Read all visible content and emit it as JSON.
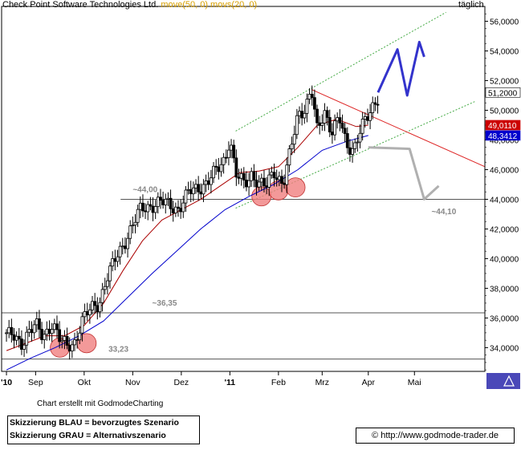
{
  "header": {
    "instrument": "Check Point Software Technologies Ltd.",
    "indicators": "move(50, 0) movs(20, 0)",
    "frequency": "täglich"
  },
  "footer": {
    "credit": "Chart erstellt mit GodmodeCharting",
    "legend_blue": "Skizzierung BLAU = bevorzugtes Szenario",
    "legend_grey": "Skizzierung GRAU = Alternativszenario",
    "copyright_symbol": "©",
    "url": "http://www.godmode-trader.de"
  },
  "colors": {
    "candle": "#000000",
    "ma_short": "#aa0000",
    "ma_long": "#0000cc",
    "channel": "#44aa44",
    "resistance": "#dd2222",
    "level_line": "#555555",
    "scenario_blue": "#3333cc",
    "scenario_grey": "#b0b0b0",
    "circle_fill": "#f08080",
    "price_label_bg": "#cc0000",
    "ma_label_bg": "#0000cc"
  },
  "chart_data": {
    "type": "candlestick",
    "y_axis": {
      "side": "right",
      "ylim": [
        32.4,
        57.0
      ],
      "ticks": [
        34,
        36,
        38,
        40,
        42,
        44,
        46,
        48,
        50,
        52,
        54,
        56
      ],
      "tick_labels": [
        "34,0000",
        "36,0000",
        "38,0000",
        "40,0000",
        "42,0000",
        "44,0000",
        "46,0000",
        "48,0000",
        "50,0000",
        "52,0000",
        "54,0000",
        "56,0000"
      ]
    },
    "x_axis": {
      "labels": [
        {
          "label": "'10",
          "pos": 0.0
        },
        {
          "label": "Sep",
          "pos": 0.6
        },
        {
          "label": "Okt",
          "pos": 1.6
        },
        {
          "label": "Nov",
          "pos": 2.6
        },
        {
          "label": "Dez",
          "pos": 3.6
        },
        {
          "label": "'11",
          "pos": 4.6
        },
        {
          "label": "Feb",
          "pos": 5.6
        },
        {
          "label": "Mrz",
          "pos": 6.5
        },
        {
          "label": "Apr",
          "pos": 7.45
        },
        {
          "label": "Mai",
          "pos": 8.4
        }
      ],
      "range": [
        -0.1,
        9.85
      ]
    },
    "price_series": [
      [
        0.0,
        35.0
      ],
      [
        0.3,
        34.2
      ],
      [
        0.45,
        35.2
      ],
      [
        0.6,
        35.5
      ],
      [
        0.75,
        34.6
      ],
      [
        0.95,
        35.8
      ],
      [
        1.1,
        34.5
      ],
      [
        1.25,
        34.0
      ],
      [
        1.4,
        34.4
      ],
      [
        1.55,
        35.8
      ],
      [
        1.75,
        36.6
      ],
      [
        1.9,
        37.0
      ],
      [
        2.05,
        38.6
      ],
      [
        2.2,
        39.6
      ],
      [
        2.35,
        40.6
      ],
      [
        2.55,
        42.0
      ],
      [
        2.75,
        43.2
      ],
      [
        2.95,
        43.6
      ],
      [
        3.15,
        43.8
      ],
      [
        3.35,
        43.6
      ],
      [
        3.55,
        43.4
      ],
      [
        3.75,
        44.4
      ],
      [
        3.95,
        44.8
      ],
      [
        4.15,
        45.2
      ],
      [
        4.35,
        46.0
      ],
      [
        4.5,
        46.8
      ],
      [
        4.6,
        48.2
      ],
      [
        4.72,
        45.6
      ],
      [
        4.9,
        45.0
      ],
      [
        5.05,
        45.8
      ],
      [
        5.2,
        45.0
      ],
      [
        5.35,
        44.8
      ],
      [
        5.5,
        46.0
      ],
      [
        5.7,
        45.0
      ],
      [
        5.85,
        47.2
      ],
      [
        6.0,
        49.8
      ],
      [
        6.15,
        50.2
      ],
      [
        6.28,
        51.3
      ],
      [
        6.4,
        48.5
      ],
      [
        6.55,
        50.0
      ],
      [
        6.7,
        48.6
      ],
      [
        6.85,
        49.4
      ],
      [
        7.0,
        47.6
      ],
      [
        7.15,
        47.5
      ],
      [
        7.3,
        48.8
      ],
      [
        7.42,
        49.3
      ],
      [
        7.55,
        50.3
      ],
      [
        7.65,
        51.0
      ]
    ],
    "ma_short": [
      [
        0.0,
        33.8
      ],
      [
        0.4,
        34.3
      ],
      [
        0.8,
        34.8
      ],
      [
        1.2,
        34.8
      ],
      [
        1.6,
        35.5
      ],
      [
        2.0,
        37.0
      ],
      [
        2.4,
        39.2
      ],
      [
        2.8,
        41.2
      ],
      [
        3.2,
        42.6
      ],
      [
        3.6,
        43.3
      ],
      [
        4.0,
        44.0
      ],
      [
        4.4,
        44.9
      ],
      [
        4.8,
        45.8
      ],
      [
        5.2,
        45.9
      ],
      [
        5.6,
        46.2
      ],
      [
        6.0,
        47.5
      ],
      [
        6.4,
        49.0
      ],
      [
        6.8,
        49.4
      ],
      [
        7.2,
        48.9
      ],
      [
        7.45,
        49.0
      ]
    ],
    "ma_long": [
      [
        0.0,
        32.5
      ],
      [
        0.5,
        33.3
      ],
      [
        1.0,
        34.0
      ],
      [
        1.5,
        34.8
      ],
      [
        2.0,
        35.8
      ],
      [
        2.5,
        37.4
      ],
      [
        3.0,
        39.0
      ],
      [
        3.5,
        40.5
      ],
      [
        4.0,
        42.0
      ],
      [
        4.5,
        43.3
      ],
      [
        5.0,
        44.2
      ],
      [
        5.5,
        45.0
      ],
      [
        6.0,
        46.0
      ],
      [
        6.5,
        47.3
      ],
      [
        7.0,
        47.9
      ],
      [
        7.45,
        48.3
      ]
    ],
    "channel_upper": [
      [
        4.72,
        48.6
      ],
      [
        9.05,
        56.6
      ]
    ],
    "channel_lower": [
      [
        4.72,
        43.4
      ],
      [
        9.65,
        50.6
      ]
    ],
    "resistance_line": [
      [
        6.28,
        51.4
      ],
      [
        9.85,
        46.2
      ]
    ],
    "levels": [
      {
        "value": 44.0,
        "label": "~44,00",
        "x_from": 2.35,
        "label_x": 2.6
      },
      {
        "value": 36.35,
        "label": "~36,35",
        "x_from": -0.1,
        "label_x": 3.0
      },
      {
        "value": 33.23,
        "label": "33,23",
        "x_from": -0.1,
        "label_x": 2.1
      }
    ],
    "annotation_44_10": {
      "label": "~44,10",
      "x": 8.75,
      "y": 43.0
    },
    "circles": [
      [
        1.1,
        34.0
      ],
      [
        1.65,
        34.3
      ],
      [
        5.25,
        44.2
      ],
      [
        5.6,
        44.6
      ],
      [
        5.95,
        44.8
      ]
    ],
    "scenario_blue": [
      [
        7.65,
        51.2
      ],
      [
        8.05,
        54.1
      ],
      [
        8.25,
        51.0
      ],
      [
        8.5,
        54.6
      ],
      [
        8.6,
        53.6
      ]
    ],
    "scenario_grey": [
      [
        7.45,
        47.5
      ],
      [
        8.3,
        47.4
      ],
      [
        8.6,
        44.0
      ],
      [
        8.9,
        44.9
      ]
    ],
    "price_labels": [
      {
        "text": "51,2000",
        "value": 51.2,
        "style": "white"
      },
      {
        "text": "49,0110",
        "value": 49.0,
        "style": "red"
      },
      {
        "text": "48,3412",
        "value": 48.3,
        "style": "blue"
      }
    ]
  }
}
